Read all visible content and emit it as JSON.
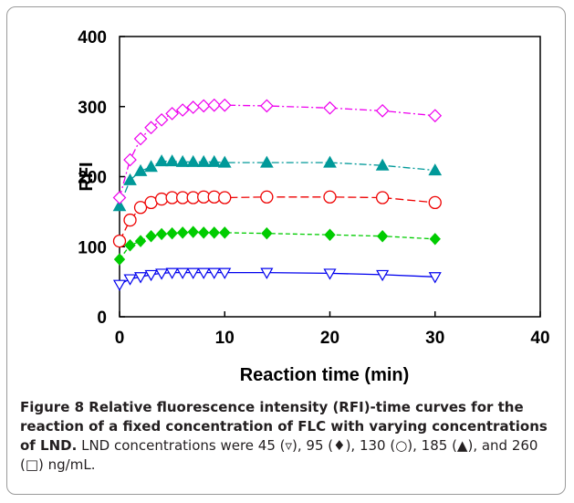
{
  "chart_data": {
    "type": "line",
    "title": "",
    "xlabel": "Reaction time (min)",
    "ylabel": "RFI",
    "xlim": [
      0,
      40
    ],
    "ylim": [
      0,
      400
    ],
    "x_ticks": [
      0,
      10,
      20,
      30,
      40
    ],
    "y_ticks": [
      0,
      100,
      200,
      300,
      400
    ],
    "grid": false,
    "legend": "none",
    "series": [
      {
        "marker": "triangle-down-open",
        "color": "#0000ee",
        "dash": "solid",
        "x": [
          0,
          1,
          2,
          3,
          4,
          5,
          6,
          7,
          8,
          9,
          10,
          14,
          20,
          25,
          30
        ],
        "y": [
          46,
          54,
          57,
          60,
          62,
          63,
          63,
          63,
          63,
          63,
          63,
          63,
          62,
          60,
          57
        ]
      },
      {
        "marker": "diamond-filled",
        "color": "#00cc00",
        "dash": "dash",
        "x": [
          0,
          1,
          2,
          3,
          4,
          5,
          6,
          7,
          8,
          9,
          10,
          14,
          20,
          25,
          30
        ],
        "y": [
          82,
          102,
          108,
          115,
          118,
          119,
          120,
          121,
          120,
          120,
          120,
          119,
          117,
          115,
          111
        ]
      },
      {
        "marker": "circle-open",
        "color": "#ee0000",
        "dash": "longdash",
        "x": [
          0,
          1,
          2,
          3,
          4,
          5,
          6,
          7,
          8,
          9,
          10,
          14,
          20,
          25,
          30
        ],
        "y": [
          108,
          138,
          156,
          163,
          168,
          170,
          170,
          170,
          171,
          171,
          170,
          171,
          171,
          170,
          163
        ]
      },
      {
        "marker": "triangle-up-filled",
        "color": "#009999",
        "dash": "dashdot",
        "x": [
          0,
          1,
          2,
          3,
          4,
          5,
          6,
          7,
          8,
          9,
          10,
          14,
          20,
          25,
          30
        ],
        "y": [
          158,
          195,
          208,
          214,
          222,
          222,
          221,
          221,
          221,
          221,
          220,
          220,
          220,
          216,
          209
        ]
      },
      {
        "marker": "diamond-open",
        "color": "#ee00ee",
        "dash": "dashdot",
        "x": [
          0,
          1,
          2,
          3,
          4,
          5,
          6,
          7,
          8,
          9,
          10,
          14,
          20,
          25,
          30
        ],
        "y": [
          170,
          224,
          254,
          270,
          281,
          290,
          295,
          299,
          301,
          302,
          302,
          301,
          298,
          294,
          287
        ]
      }
    ]
  },
  "caption": {
    "label": "Figure 8",
    "title": " Relative fluorescence intensity (RFI)-time curves for the reaction of a fixed concentration of FLC with varying concentrations of LND.",
    "body": " LND concentrations were 45 (▿), 95 (♦), 130 (○), 185 (▲), and 260 (□) ng/mL."
  }
}
